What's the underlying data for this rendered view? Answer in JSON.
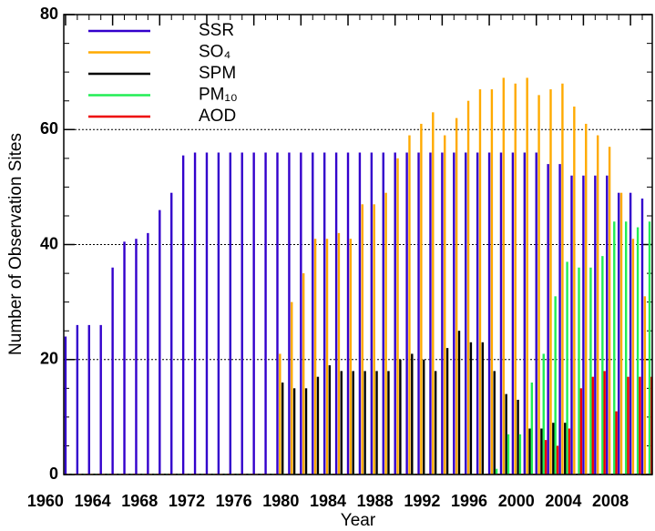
{
  "chart_data": {
    "type": "bar",
    "x_label": "Year",
    "y_label": "Number of Observation Sites",
    "x": [
      1960,
      1961,
      1962,
      1963,
      1964,
      1965,
      1966,
      1967,
      1968,
      1969,
      1970,
      1971,
      1972,
      1973,
      1974,
      1975,
      1976,
      1977,
      1978,
      1979,
      1980,
      1981,
      1982,
      1983,
      1984,
      1985,
      1986,
      1987,
      1988,
      1989,
      1990,
      1991,
      1992,
      1993,
      1994,
      1995,
      1996,
      1997,
      1998,
      1999,
      2000,
      2001,
      2002,
      2003,
      2004,
      2005,
      2006,
      2007,
      2008,
      2009
    ],
    "series": [
      {
        "name": "SSR",
        "color": "#3300cc",
        "values": [
          24,
          26,
          26,
          26,
          36,
          40.5,
          41,
          42,
          46,
          49,
          55.5,
          56,
          56,
          56,
          56,
          56,
          56,
          56,
          56,
          56,
          56,
          56,
          56,
          56,
          56,
          56,
          56,
          56,
          56,
          56,
          56,
          56,
          56,
          56,
          56,
          56,
          56,
          56,
          56,
          56,
          56,
          54,
          54,
          52,
          52,
          52,
          52,
          49,
          49,
          48
        ]
      },
      {
        "name": "SO₄",
        "color": "#ffaa00",
        "values": [
          0,
          0,
          0,
          0,
          0,
          0,
          0,
          0,
          0,
          0,
          0,
          0,
          0,
          0,
          0,
          0,
          0,
          0,
          21,
          30,
          35,
          41,
          41,
          42,
          41,
          47,
          47,
          49,
          55,
          59,
          61,
          63,
          59,
          62,
          65,
          67,
          67,
          69,
          68,
          69,
          66,
          67,
          68,
          64,
          61,
          59,
          57,
          49,
          41,
          31
        ]
      },
      {
        "name": "SPM",
        "color": "#000000",
        "values": [
          0,
          0,
          0,
          0,
          0,
          0,
          0,
          0,
          0,
          0,
          0,
          0,
          0,
          0,
          0,
          0,
          0,
          0,
          16,
          15,
          15,
          17,
          19,
          18,
          18,
          18,
          18,
          18,
          20,
          21,
          20,
          18,
          22,
          25,
          23,
          23,
          18,
          14,
          13,
          8,
          8,
          9,
          9,
          0,
          0,
          0,
          0,
          0,
          0,
          0
        ]
      },
      {
        "name": "PM₁₀",
        "color": "#22ee55",
        "values": [
          0,
          0,
          0,
          0,
          0,
          0,
          0,
          0,
          0,
          0,
          0,
          0,
          0,
          0,
          0,
          0,
          0,
          0,
          0,
          0,
          0,
          0,
          0,
          0,
          0,
          0,
          0,
          0,
          0,
          0,
          0,
          0,
          0,
          0,
          0,
          0,
          1,
          7,
          7,
          16,
          21,
          31,
          37,
          36,
          36,
          38,
          44,
          44,
          43,
          44
        ]
      },
      {
        "name": "AOD",
        "color": "#ee0000",
        "values": [
          0,
          0,
          0,
          0,
          0,
          0,
          0,
          0,
          0,
          0,
          0,
          0,
          0,
          0,
          0,
          0,
          0,
          0,
          0,
          0,
          0,
          0,
          0,
          0,
          0,
          0,
          0,
          0,
          0,
          0,
          0,
          0,
          0,
          0,
          0,
          0,
          0,
          0,
          0,
          0,
          6,
          5,
          8,
          15,
          17,
          18,
          11,
          17,
          17,
          17
        ]
      }
    ],
    "xlim": [
      1959.85,
      2009.85
    ],
    "xticks": [
      1960,
      1964,
      1968,
      1972,
      1976,
      1980,
      1984,
      1988,
      1992,
      1996,
      2000,
      2004,
      2008
    ],
    "ylim": [
      0,
      80
    ],
    "yticks": [
      0,
      20,
      40,
      60,
      80
    ],
    "grid": true,
    "legend": "upper left"
  }
}
